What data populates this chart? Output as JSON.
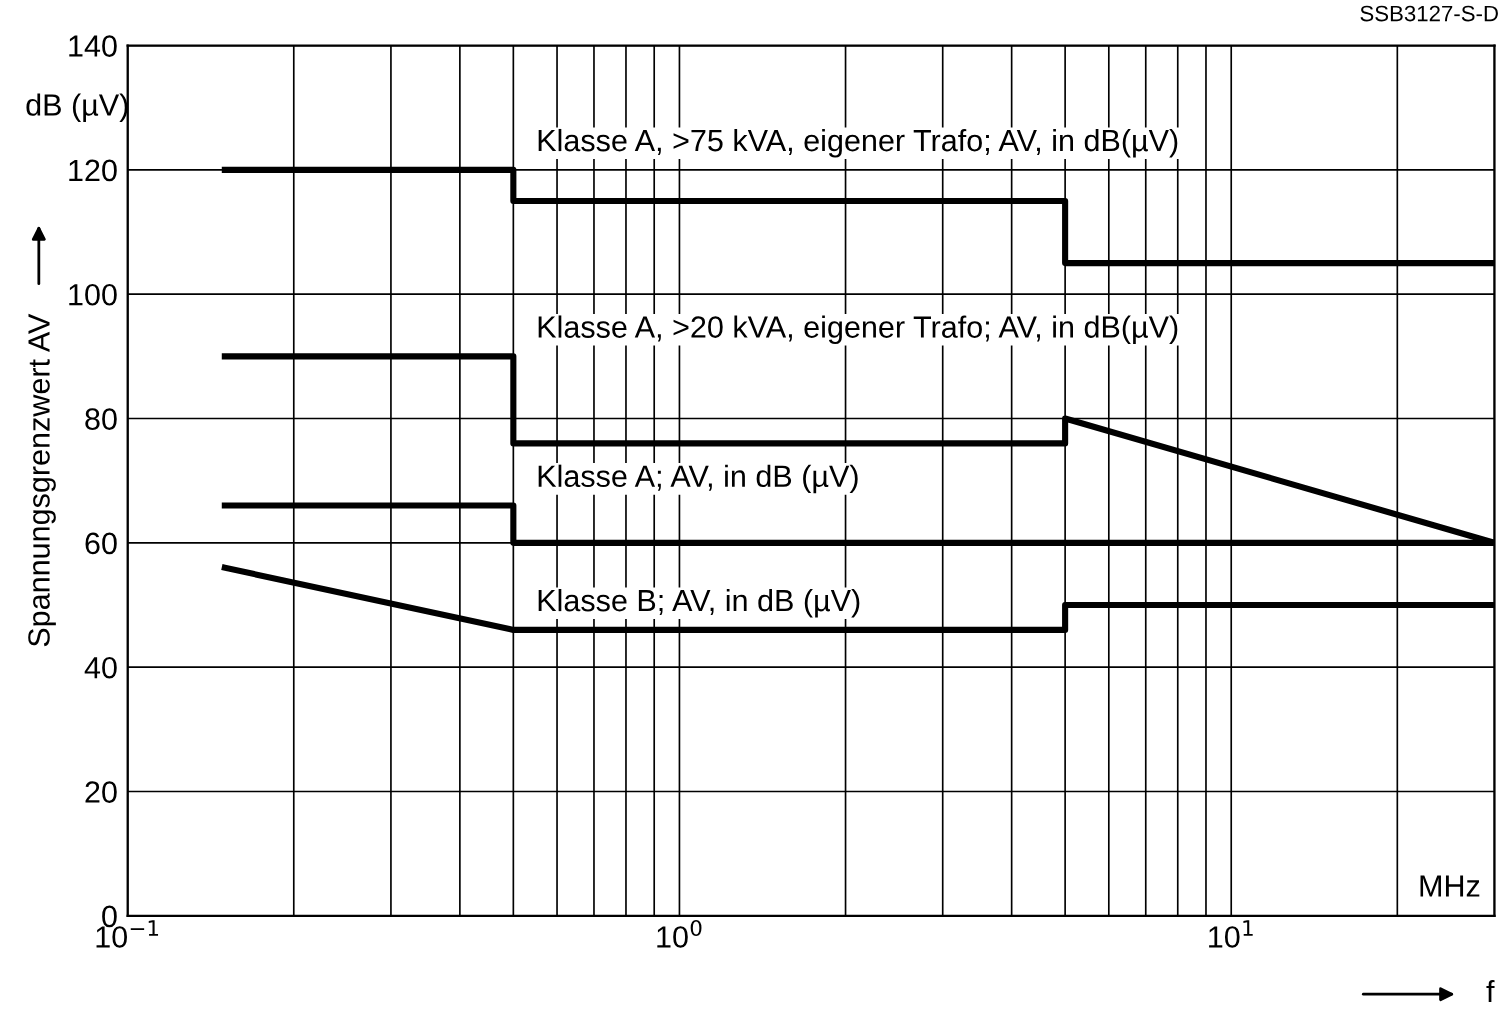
{
  "chart_data": {
    "type": "line",
    "ylabel": "Spannungsgrenzwert AV",
    "xlabel": "f",
    "annotations": [
      "SSB3127-S-D",
      "dB (µV)",
      "MHz"
    ],
    "log": "x",
    "xlim": [
      0.1,
      30
    ],
    "xticks": [
      {
        "value": 0.1,
        "label": "10$^{−1}$"
      },
      {
        "value": 1,
        "label": "10$^{0}$"
      },
      {
        "value": 10,
        "label": "10$^{1}$"
      }
    ],
    "ylim": [
      0,
      140
    ],
    "yticks": [
      0,
      20,
      40,
      60,
      80,
      100,
      120,
      140
    ],
    "grid": true,
    "legend": false,
    "series": [
      {
        "name": "Klasse A, >75 kVA, eigener Trafo; AV, in dB(µV)",
        "color": "#000000",
        "x": [
          0.15,
          0.5,
          0.5,
          5,
          5,
          30
        ],
        "values": [
          120,
          120,
          115,
          115,
          105,
          105
        ]
      },
      {
        "name": "Klasse A, >20 kVA, eigener Trafo; AV, in dB(µV)",
        "color": "#000000",
        "x": [
          0.15,
          0.5,
          0.5,
          5,
          5,
          30
        ],
        "values": [
          90,
          90,
          76,
          76,
          80,
          60
        ]
      },
      {
        "name": "Klasse A; AV, in dB (µV)",
        "color": "#000000",
        "x": [
          0.15,
          0.5,
          0.5,
          30
        ],
        "values": [
          66,
          66,
          60,
          60
        ]
      },
      {
        "name": "Klasse B; AV, in dB (µV)",
        "color": "#000000",
        "x": [
          0.15,
          0.5,
          5,
          5,
          30
        ],
        "values": [
          56,
          46,
          46,
          50,
          50
        ]
      }
    ]
  }
}
